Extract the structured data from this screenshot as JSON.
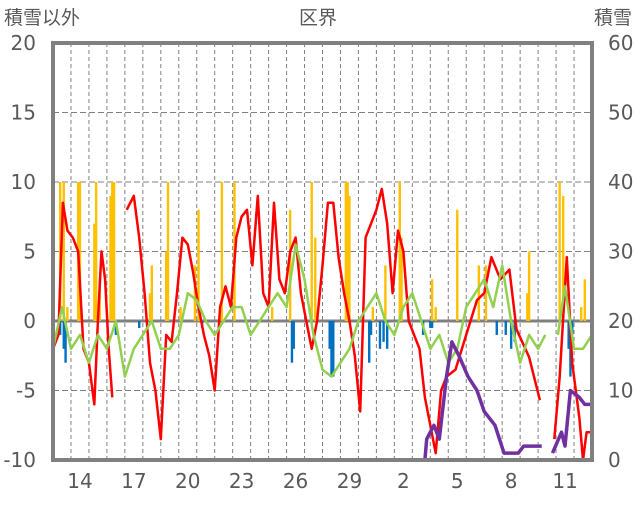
{
  "chart_data": {
    "type": "line",
    "title": "区界",
    "ylabel": "積雪以外",
    "y2label": "積雪",
    "ylim": [
      -10,
      20
    ],
    "y2lim": [
      0,
      60
    ],
    "yticks": [
      -10,
      -5,
      0,
      5,
      10,
      15,
      20
    ],
    "y2ticks": [
      0,
      10,
      20,
      30,
      40,
      50,
      60
    ],
    "xlim": [
      0,
      30
    ],
    "xticks": [
      {
        "x": 1.5,
        "label": "14"
      },
      {
        "x": 4.5,
        "label": "17"
      },
      {
        "x": 7.5,
        "label": "20"
      },
      {
        "x": 10.5,
        "label": "23"
      },
      {
        "x": 13.5,
        "label": "26"
      },
      {
        "x": 16.5,
        "label": "29"
      },
      {
        "x": 19.5,
        "label": "2"
      },
      {
        "x": 22.5,
        "label": "5"
      },
      {
        "x": 25.5,
        "label": "8"
      },
      {
        "x": 28.5,
        "label": "11"
      }
    ],
    "grid": true,
    "colors": {
      "temp": "#ff0000",
      "green": "#92d050",
      "precip": "#ffc000",
      "blue": "#0070c0",
      "snow": "#7030a0",
      "axis": "#808080"
    },
    "series": [
      {
        "name": "red",
        "axis": "left",
        "color": "#ff0000",
        "points": [
          [
            0,
            -2
          ],
          [
            0.3,
            -1
          ],
          [
            0.55,
            8.5
          ],
          [
            0.8,
            6.5
          ],
          [
            1.1,
            6
          ],
          [
            1.4,
            5
          ],
          [
            1.7,
            -2
          ],
          [
            2.0,
            -3
          ],
          [
            2.3,
            -6
          ],
          [
            2.5,
            0
          ],
          [
            2.7,
            5
          ],
          [
            2.9,
            3
          ],
          [
            3.1,
            -2
          ],
          [
            3.3,
            -5.5
          ],
          [
            3.5,
            null
          ],
          [
            4.1,
            8
          ],
          [
            4.5,
            9
          ],
          [
            4.8,
            6
          ],
          [
            5.1,
            2
          ],
          [
            5.4,
            -3
          ],
          [
            5.7,
            -5
          ],
          [
            6.0,
            -8.5
          ],
          [
            6.3,
            -1
          ],
          [
            6.6,
            -1.5
          ],
          [
            6.9,
            2
          ],
          [
            7.2,
            6
          ],
          [
            7.5,
            5.5
          ],
          [
            7.8,
            3.5
          ],
          [
            8.1,
            1
          ],
          [
            8.4,
            -1
          ],
          [
            8.7,
            -2.5
          ],
          [
            9.0,
            -5
          ],
          [
            9.3,
            1
          ],
          [
            9.6,
            2.5
          ],
          [
            9.9,
            1
          ],
          [
            10.2,
            6
          ],
          [
            10.5,
            7.5
          ],
          [
            10.8,
            8
          ],
          [
            11.1,
            4
          ],
          [
            11.4,
            9
          ],
          [
            11.7,
            2
          ],
          [
            12.0,
            1
          ],
          [
            12.3,
            8.5
          ],
          [
            12.6,
            3
          ],
          [
            12.9,
            2
          ],
          [
            13.2,
            5
          ],
          [
            13.5,
            6
          ],
          [
            13.8,
            2
          ],
          [
            14.1,
            0
          ],
          [
            14.4,
            -2
          ],
          [
            14.7,
            0
          ],
          [
            15.0,
            4
          ],
          [
            15.3,
            8.5
          ],
          [
            15.6,
            8.5
          ],
          [
            15.9,
            4.5
          ],
          [
            16.2,
            2
          ],
          [
            16.5,
            0
          ],
          [
            16.8,
            -2.5
          ],
          [
            17.1,
            -6.5
          ],
          [
            17.4,
            6
          ],
          [
            17.7,
            7
          ],
          [
            18.0,
            8
          ],
          [
            18.3,
            9.5
          ],
          [
            18.6,
            7
          ],
          [
            18.9,
            2
          ],
          [
            19.2,
            6.5
          ],
          [
            19.5,
            5
          ],
          [
            19.8,
            0
          ],
          [
            20.1,
            -1
          ],
          [
            20.4,
            -2
          ],
          [
            20.7,
            -5.5
          ],
          [
            21.0,
            -7.5
          ],
          [
            21.3,
            -9.5
          ],
          [
            21.6,
            -5
          ],
          [
            21.9,
            -4
          ],
          [
            22.4,
            -3.5
          ],
          [
            23.0,
            -1
          ],
          [
            23.6,
            1.5
          ],
          [
            24.0,
            2
          ],
          [
            24.4,
            4.6
          ],
          [
            24.9,
            3
          ],
          [
            25.4,
            3.7
          ],
          [
            25.8,
            -0.6
          ],
          [
            26.5,
            -2.6
          ],
          [
            27.1,
            -5.7
          ],
          [
            27.2,
            null
          ],
          [
            27.9,
            -8.5
          ],
          [
            28.2,
            -4
          ],
          [
            28.6,
            4.6
          ],
          [
            28.9,
            -3
          ],
          [
            29.3,
            -7
          ],
          [
            29.5,
            -10
          ],
          [
            29.7,
            -8
          ],
          [
            29.9,
            -8
          ]
        ]
      },
      {
        "name": "green",
        "axis": "left",
        "color": "#92d050",
        "points": [
          [
            0,
            -2
          ],
          [
            0.5,
            1
          ],
          [
            1,
            -2
          ],
          [
            1.5,
            -1
          ],
          [
            2,
            -3
          ],
          [
            2.5,
            -1
          ],
          [
            3,
            -2
          ],
          [
            3.5,
            0
          ],
          [
            4,
            -4
          ],
          [
            4.5,
            -2
          ],
          [
            5,
            -1
          ],
          [
            5.5,
            0
          ],
          [
            6,
            -2
          ],
          [
            6.5,
            -2
          ],
          [
            7,
            -1
          ],
          [
            7.5,
            2
          ],
          [
            8,
            1.5
          ],
          [
            8.5,
            0
          ],
          [
            9,
            -1
          ],
          [
            9.5,
            0
          ],
          [
            10,
            1
          ],
          [
            10.5,
            1
          ],
          [
            11,
            -1
          ],
          [
            11.5,
            0
          ],
          [
            12,
            1
          ],
          [
            12.5,
            2
          ],
          [
            13,
            1
          ],
          [
            13.5,
            5.5
          ],
          [
            14,
            3
          ],
          [
            14.5,
            -1
          ],
          [
            15,
            -3.5
          ],
          [
            15.5,
            -4
          ],
          [
            16,
            -3
          ],
          [
            16.5,
            -2
          ],
          [
            17,
            0
          ],
          [
            17.5,
            1
          ],
          [
            18,
            2
          ],
          [
            18.5,
            0
          ],
          [
            19,
            -1
          ],
          [
            19.5,
            1
          ],
          [
            20,
            2
          ],
          [
            20.5,
            0
          ],
          [
            21,
            -2
          ],
          [
            21.5,
            -1
          ],
          [
            22,
            -3
          ],
          [
            22.5,
            -2
          ],
          [
            23,
            1
          ],
          [
            23.5,
            2
          ],
          [
            24,
            3
          ],
          [
            24.5,
            1
          ],
          [
            25,
            4
          ],
          [
            25.5,
            0
          ],
          [
            26,
            -3
          ],
          [
            26.5,
            -1
          ],
          [
            27,
            -2
          ],
          [
            27.4,
            -1
          ],
          [
            27.6,
            null
          ],
          [
            28.1,
            -1
          ],
          [
            28.5,
            2.5
          ],
          [
            29,
            -2
          ],
          [
            29.5,
            -2
          ],
          [
            30,
            -1
          ]
        ]
      },
      {
        "name": "snow-depth",
        "axis": "right",
        "color": "#7030a0",
        "points": [
          [
            0,
            0
          ],
          [
            20.7,
            0
          ],
          [
            20.8,
            3
          ],
          [
            21.2,
            5
          ],
          [
            21.5,
            3
          ],
          [
            21.9,
            12
          ],
          [
            22.2,
            17
          ],
          [
            22.6,
            15
          ],
          [
            23.1,
            12
          ],
          [
            23.6,
            10
          ],
          [
            24.0,
            7
          ],
          [
            24.6,
            5
          ],
          [
            25.1,
            1
          ],
          [
            25.9,
            1
          ],
          [
            26.2,
            2
          ],
          [
            27.2,
            2
          ],
          [
            27.3,
            null
          ],
          [
            27.8,
            1
          ],
          [
            28.3,
            4
          ],
          [
            28.5,
            2
          ],
          [
            28.8,
            10
          ],
          [
            29.3,
            9
          ],
          [
            29.6,
            8
          ],
          [
            29.9,
            8
          ]
        ]
      }
    ],
    "bars_positive": {
      "name": "precip",
      "color": "#ffc000",
      "points": [
        [
          0.4,
          10
        ],
        [
          0.6,
          10
        ],
        [
          0.8,
          1
        ],
        [
          1.4,
          10
        ],
        [
          1.5,
          10
        ],
        [
          2.3,
          7
        ],
        [
          2.4,
          10
        ],
        [
          2.6,
          3
        ],
        [
          3.2,
          9
        ],
        [
          3.3,
          10
        ],
        [
          3.4,
          10
        ],
        [
          5.4,
          2
        ],
        [
          5.5,
          4
        ],
        [
          6.3,
          5
        ],
        [
          6.4,
          10
        ],
        [
          7.1,
          1
        ],
        [
          7.9,
          4
        ],
        [
          8.1,
          8
        ],
        [
          9.4,
          10
        ],
        [
          10.1,
          10
        ],
        [
          12.2,
          1
        ],
        [
          13.2,
          8
        ],
        [
          14.4,
          10
        ],
        [
          14.6,
          6
        ],
        [
          16.3,
          10
        ],
        [
          16.4,
          10
        ],
        [
          16.5,
          9
        ],
        [
          17.8,
          1
        ],
        [
          18.5,
          4
        ],
        [
          19.3,
          10
        ],
        [
          19.4,
          6
        ],
        [
          21.1,
          3
        ],
        [
          21.3,
          1
        ],
        [
          22.5,
          8
        ],
        [
          23.7,
          4
        ],
        [
          24.1,
          4
        ],
        [
          26.4,
          2
        ],
        [
          26.5,
          5
        ],
        [
          28.2,
          10
        ],
        [
          28.4,
          9
        ],
        [
          29.4,
          1
        ],
        [
          29.6,
          3
        ]
      ]
    },
    "bars_negative": {
      "name": "blue",
      "color": "#0070c0",
      "points": [
        [
          0.4,
          -1
        ],
        [
          0.6,
          -2
        ],
        [
          0.7,
          -3
        ],
        [
          3.5,
          -1
        ],
        [
          4.8,
          -0.5
        ],
        [
          8.3,
          -0.5
        ],
        [
          13.3,
          -3
        ],
        [
          13.4,
          -2
        ],
        [
          15.4,
          -2
        ],
        [
          15.5,
          -4
        ],
        [
          15.6,
          -4
        ],
        [
          17.6,
          -3
        ],
        [
          17.7,
          -1
        ],
        [
          18.2,
          -2
        ],
        [
          18.4,
          -1.5
        ],
        [
          18.6,
          -2
        ],
        [
          20.6,
          -1
        ],
        [
          21.0,
          -0.5
        ],
        [
          21.1,
          -0.5
        ],
        [
          24.7,
          -1
        ],
        [
          25.2,
          -1
        ],
        [
          25.5,
          -2
        ],
        [
          25.7,
          -1.5
        ],
        [
          28.7,
          -2
        ],
        [
          28.8,
          -4
        ],
        [
          28.9,
          -1
        ]
      ]
    }
  }
}
